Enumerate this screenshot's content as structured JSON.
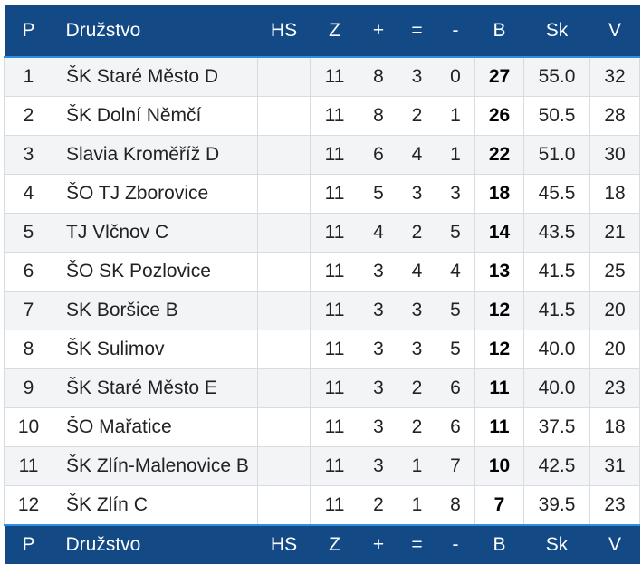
{
  "columns": {
    "p": "P",
    "team": "Družstvo",
    "hs": "HS",
    "z": "Z",
    "plus": "+",
    "eq": "=",
    "minus": "-",
    "b": "B",
    "sk": "Sk",
    "v": "V"
  },
  "rows": [
    {
      "p": "1",
      "team": "ŠK Staré Město D",
      "hs": "",
      "z": "11",
      "plus": "8",
      "eq": "3",
      "minus": "0",
      "b": "27",
      "sk": "55.0",
      "v": "32"
    },
    {
      "p": "2",
      "team": "ŠK Dolní Němčí",
      "hs": "",
      "z": "11",
      "plus": "8",
      "eq": "2",
      "minus": "1",
      "b": "26",
      "sk": "50.5",
      "v": "28"
    },
    {
      "p": "3",
      "team": "Slavia Kroměříž D",
      "hs": "",
      "z": "11",
      "plus": "6",
      "eq": "4",
      "minus": "1",
      "b": "22",
      "sk": "51.0",
      "v": "30"
    },
    {
      "p": "4",
      "team": "ŠO TJ Zborovice",
      "hs": "",
      "z": "11",
      "plus": "5",
      "eq": "3",
      "minus": "3",
      "b": "18",
      "sk": "45.5",
      "v": "18"
    },
    {
      "p": "5",
      "team": "TJ Vlčnov C",
      "hs": "",
      "z": "11",
      "plus": "4",
      "eq": "2",
      "minus": "5",
      "b": "14",
      "sk": "43.5",
      "v": "21"
    },
    {
      "p": "6",
      "team": "ŠO SK Pozlovice",
      "hs": "",
      "z": "11",
      "plus": "3",
      "eq": "4",
      "minus": "4",
      "b": "13",
      "sk": "41.5",
      "v": "25"
    },
    {
      "p": "7",
      "team": "SK Boršice B",
      "hs": "",
      "z": "11",
      "plus": "3",
      "eq": "3",
      "minus": "5",
      "b": "12",
      "sk": "41.5",
      "v": "20"
    },
    {
      "p": "8",
      "team": "ŠK Sulimov",
      "hs": "",
      "z": "11",
      "plus": "3",
      "eq": "3",
      "minus": "5",
      "b": "12",
      "sk": "40.0",
      "v": "20"
    },
    {
      "p": "9",
      "team": "ŠK Staré Město E",
      "hs": "",
      "z": "11",
      "plus": "3",
      "eq": "2",
      "minus": "6",
      "b": "11",
      "sk": "40.0",
      "v": "23"
    },
    {
      "p": "10",
      "team": "ŠO Mařatice",
      "hs": "",
      "z": "11",
      "plus": "3",
      "eq": "2",
      "minus": "6",
      "b": "11",
      "sk": "37.5",
      "v": "18"
    },
    {
      "p": "11",
      "team": "ŠK Zlín-Malenovice B",
      "hs": "",
      "z": "11",
      "plus": "3",
      "eq": "1",
      "minus": "7",
      "b": "10",
      "sk": "42.5",
      "v": "31"
    },
    {
      "p": "12",
      "team": "ŠK Zlín C",
      "hs": "",
      "z": "11",
      "plus": "2",
      "eq": "1",
      "minus": "8",
      "b": "7",
      "sk": "39.5",
      "v": "23"
    }
  ],
  "colors": {
    "header_bg": "#134a86",
    "header_accent": "#2e8fe0",
    "stripe": "#f3f4f6"
  }
}
